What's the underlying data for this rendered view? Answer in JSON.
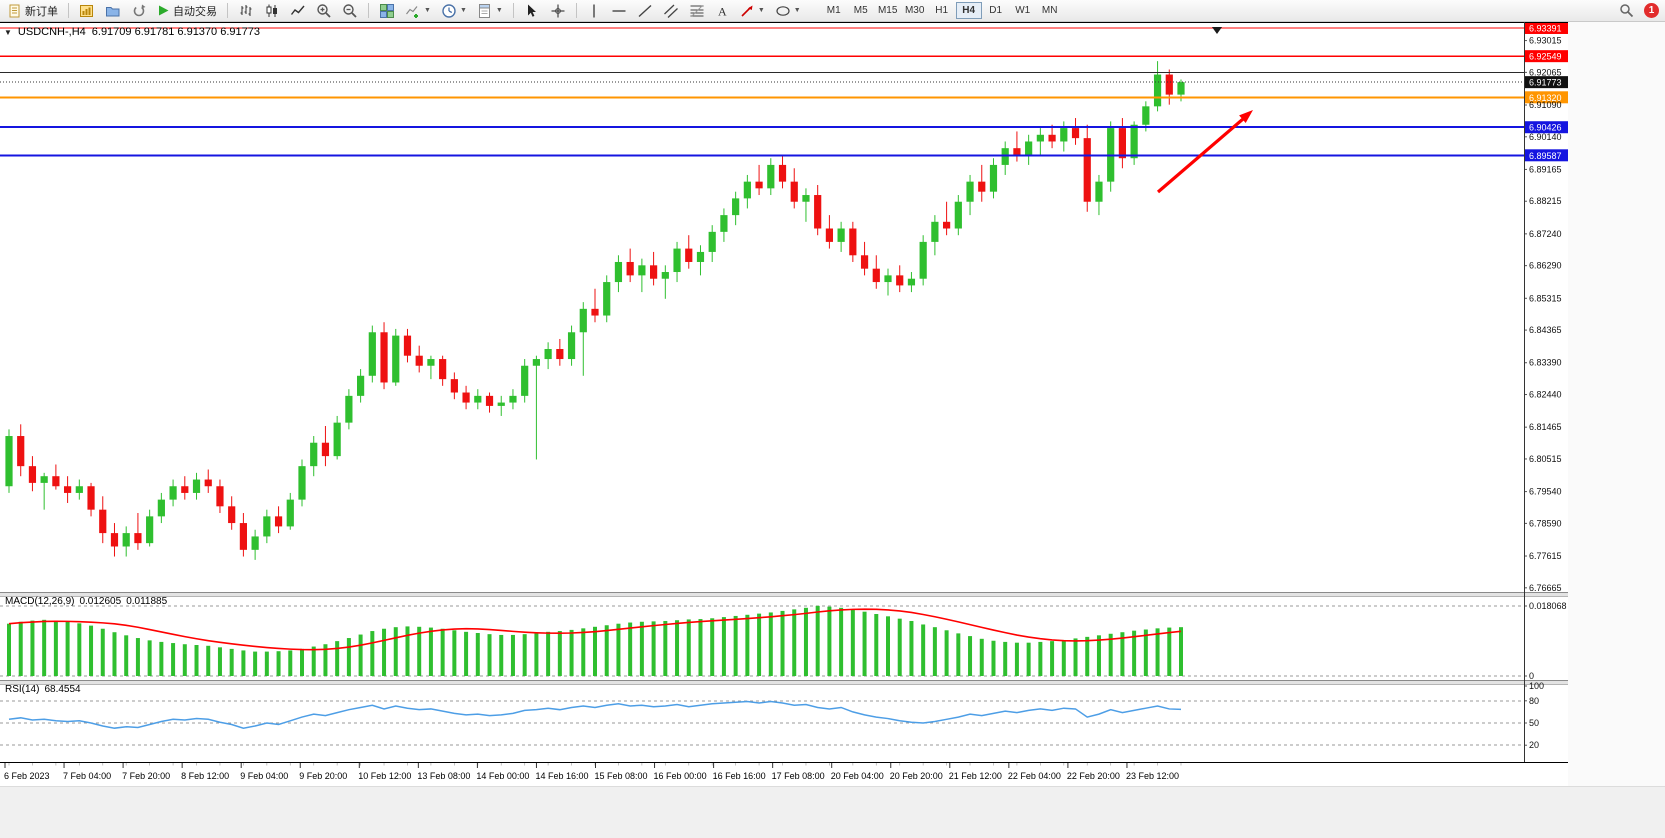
{
  "toolbar": {
    "new_order_label": "新订单",
    "autotrading_label": "自动交易",
    "timeframes": [
      "M1",
      "M5",
      "M15",
      "M30",
      "H1",
      "H4",
      "D1",
      "W1",
      "MN"
    ],
    "active_timeframe": "H4",
    "notification_count": "1"
  },
  "chart_data": [
    {
      "type": "candlestick",
      "title": "USDCNH-,H4",
      "ohlc_text": "6.91709 6.91781 6.91370 6.91773",
      "current_price": 6.91773,
      "up_color": "#2fbf2f",
      "down_color": "#ee1111",
      "y_axis_ticks": [
        6.93015,
        6.92065,
        6.9109,
        6.9014,
        6.89165,
        6.88215,
        6.8724,
        6.8629,
        6.85315,
        6.84365,
        6.8339,
        6.8244,
        6.81465,
        6.80515,
        6.7954,
        6.7859,
        6.77615,
        6.76665
      ],
      "x_axis_labels": [
        "6 Feb 2023",
        "7 Feb 04:00",
        "7 Feb 20:00",
        "8 Feb 12:00",
        "9 Feb 04:00",
        "9 Feb 20:00",
        "10 Feb 12:00",
        "13 Feb 08:00",
        "14 Feb 00:00",
        "14 Feb 16:00",
        "15 Feb 08:00",
        "16 Feb 00:00",
        "16 Feb 16:00",
        "17 Feb 08:00",
        "20 Feb 04:00",
        "20 Feb 20:00",
        "21 Feb 12:00",
        "22 Feb 04:00",
        "22 Feb 20:00",
        "23 Feb 12:00"
      ],
      "hlines": [
        {
          "price": 6.93391,
          "color": "#ff0000",
          "width": 1.4,
          "label": true
        },
        {
          "price": 6.92549,
          "color": "#ff0000",
          "width": 1.4,
          "label": true
        },
        {
          "price": 6.92065,
          "color": "#2a2a2a",
          "width": 1,
          "label": false
        },
        {
          "price": 6.9132,
          "color": "#ff9500",
          "width": 2,
          "label": true
        },
        {
          "price": 6.90426,
          "color": "#1515e0",
          "width": 2,
          "label": true
        },
        {
          "price": 6.89587,
          "color": "#1515e0",
          "width": 2,
          "label": true
        }
      ],
      "arrow": {
        "color": "#ff0000"
      },
      "candles": [
        [
          6.797,
          6.814,
          6.795,
          6.812
        ],
        [
          6.812,
          6.8155,
          6.8,
          6.803
        ],
        [
          6.803,
          6.806,
          6.7955,
          6.798
        ],
        [
          6.798,
          6.801,
          6.79,
          6.8
        ],
        [
          6.8,
          6.8035,
          6.796,
          6.797
        ],
        [
          6.797,
          6.8,
          6.792,
          6.795
        ],
        [
          6.795,
          6.799,
          6.793,
          6.797
        ],
        [
          6.797,
          6.798,
          6.788,
          6.79
        ],
        [
          6.79,
          6.794,
          6.78,
          6.783
        ],
        [
          6.783,
          6.786,
          6.776,
          6.779
        ],
        [
          6.779,
          6.785,
          6.776,
          6.783
        ],
        [
          6.783,
          6.789,
          6.778,
          6.78
        ],
        [
          6.78,
          6.79,
          6.779,
          6.788
        ],
        [
          6.788,
          6.795,
          6.786,
          6.793
        ],
        [
          6.793,
          6.799,
          6.791,
          6.797
        ],
        [
          6.797,
          6.8,
          6.793,
          6.795
        ],
        [
          6.795,
          6.801,
          6.793,
          6.799
        ],
        [
          6.799,
          6.802,
          6.795,
          6.797
        ],
        [
          6.797,
          6.799,
          6.789,
          6.791
        ],
        [
          6.791,
          6.794,
          6.784,
          6.786
        ],
        [
          6.786,
          6.789,
          6.776,
          6.778
        ],
        [
          6.778,
          6.784,
          6.775,
          6.782
        ],
        [
          6.782,
          6.79,
          6.78,
          6.788
        ],
        [
          6.788,
          6.791,
          6.783,
          6.785
        ],
        [
          6.785,
          6.795,
          6.784,
          6.793
        ],
        [
          6.793,
          6.805,
          6.791,
          6.803
        ],
        [
          6.803,
          6.812,
          6.8,
          6.81
        ],
        [
          6.81,
          6.815,
          6.803,
          6.806
        ],
        [
          6.806,
          6.818,
          6.805,
          6.816
        ],
        [
          6.816,
          6.826,
          6.814,
          6.824
        ],
        [
          6.824,
          6.832,
          6.822,
          6.83
        ],
        [
          6.83,
          6.845,
          6.828,
          6.843
        ],
        [
          6.843,
          6.846,
          6.826,
          6.828
        ],
        [
          6.828,
          6.844,
          6.827,
          6.842
        ],
        [
          6.842,
          6.844,
          6.834,
          6.836
        ],
        [
          6.836,
          6.839,
          6.831,
          6.833
        ],
        [
          6.833,
          6.836,
          6.829,
          6.835
        ],
        [
          6.835,
          6.836,
          6.827,
          6.829
        ],
        [
          6.829,
          6.831,
          6.823,
          6.825
        ],
        [
          6.825,
          6.827,
          6.82,
          6.822
        ],
        [
          6.822,
          6.826,
          6.82,
          6.824
        ],
        [
          6.824,
          6.825,
          6.819,
          6.821
        ],
        [
          6.821,
          6.824,
          6.818,
          6.822
        ],
        [
          6.822,
          6.826,
          6.82,
          6.824
        ],
        [
          6.824,
          6.835,
          6.822,
          6.833
        ],
        [
          6.833,
          6.836,
          6.805,
          6.835
        ],
        [
          6.835,
          6.84,
          6.832,
          6.838
        ],
        [
          6.838,
          6.841,
          6.833,
          6.835
        ],
        [
          6.835,
          6.845,
          6.833,
          6.843
        ],
        [
          6.843,
          6.852,
          6.83,
          6.85
        ],
        [
          6.85,
          6.856,
          6.846,
          6.848
        ],
        [
          6.848,
          6.86,
          6.846,
          6.858
        ],
        [
          6.858,
          6.866,
          6.855,
          6.864
        ],
        [
          6.864,
          6.868,
          6.858,
          6.86
        ],
        [
          6.86,
          6.865,
          6.855,
          6.863
        ],
        [
          6.863,
          6.867,
          6.857,
          6.859
        ],
        [
          6.859,
          6.863,
          6.853,
          6.861
        ],
        [
          6.861,
          6.87,
          6.858,
          6.868
        ],
        [
          6.868,
          6.872,
          6.862,
          6.864
        ],
        [
          6.864,
          6.869,
          6.86,
          6.867
        ],
        [
          6.867,
          6.875,
          6.864,
          6.873
        ],
        [
          6.873,
          6.88,
          6.87,
          6.878
        ],
        [
          6.878,
          6.885,
          6.875,
          6.883
        ],
        [
          6.883,
          6.89,
          6.88,
          6.888
        ],
        [
          6.888,
          6.893,
          6.884,
          6.886
        ],
        [
          6.886,
          6.895,
          6.884,
          6.893
        ],
        [
          6.893,
          6.896,
          6.886,
          6.888
        ],
        [
          6.888,
          6.892,
          6.88,
          6.882
        ],
        [
          6.882,
          6.886,
          6.876,
          6.884
        ],
        [
          6.884,
          6.887,
          6.872,
          6.874
        ],
        [
          6.874,
          6.878,
          6.868,
          6.87
        ],
        [
          6.87,
          6.876,
          6.867,
          6.874
        ],
        [
          6.874,
          6.876,
          6.864,
          6.866
        ],
        [
          6.866,
          6.87,
          6.86,
          6.862
        ],
        [
          6.862,
          6.866,
          6.856,
          6.858
        ],
        [
          6.858,
          6.862,
          6.854,
          6.86
        ],
        [
          6.86,
          6.863,
          6.855,
          6.857
        ],
        [
          6.857,
          6.861,
          6.855,
          6.859
        ],
        [
          6.859,
          6.872,
          6.857,
          6.87
        ],
        [
          6.87,
          6.878,
          6.866,
          6.876
        ],
        [
          6.876,
          6.882,
          6.872,
          6.874
        ],
        [
          6.874,
          6.884,
          6.872,
          6.882
        ],
        [
          6.882,
          6.89,
          6.878,
          6.888
        ],
        [
          6.888,
          6.893,
          6.882,
          6.885
        ],
        [
          6.885,
          6.895,
          6.883,
          6.893
        ],
        [
          6.893,
          6.9,
          6.89,
          6.898
        ],
        [
          6.898,
          6.903,
          6.894,
          6.896
        ],
        [
          6.896,
          6.902,
          6.893,
          6.9
        ],
        [
          6.9,
          6.904,
          6.896,
          6.902
        ],
        [
          6.902,
          6.905,
          6.898,
          6.9
        ],
        [
          6.9,
          6.906,
          6.897,
          6.904
        ],
        [
          6.904,
          6.907,
          6.899,
          6.901
        ],
        [
          6.901,
          6.905,
          6.879,
          6.882
        ],
        [
          6.882,
          6.89,
          6.878,
          6.888
        ],
        [
          6.888,
          6.906,
          6.885,
          6.904
        ],
        [
          6.904,
          6.907,
          6.892,
          6.895
        ],
        [
          6.895,
          6.906,
          6.893,
          6.905
        ],
        [
          6.905,
          6.912,
          6.903,
          6.9105
        ],
        [
          6.9105,
          6.924,
          6.909,
          6.92
        ],
        [
          6.92,
          6.9215,
          6.911,
          6.914
        ],
        [
          6.914,
          6.9185,
          6.912,
          6.91773
        ]
      ]
    },
    {
      "type": "bar",
      "name": "MACD",
      "label": "MACD(12,26,9)",
      "main_value": "0.012605",
      "signal_value": "0.011885",
      "axis_max": 0.018068,
      "bar_color": "#2fbf2f",
      "signal_color": "#ff0000",
      "histogram": [
        0.0135,
        0.014,
        0.0143,
        0.0145,
        0.0143,
        0.014,
        0.0136,
        0.013,
        0.0122,
        0.0113,
        0.0105,
        0.0098,
        0.0092,
        0.0088,
        0.0085,
        0.0082,
        0.008,
        0.0078,
        0.0074,
        0.007,
        0.0066,
        0.0063,
        0.0063,
        0.0064,
        0.0066,
        0.007,
        0.0076,
        0.0082,
        0.009,
        0.0098,
        0.0107,
        0.0116,
        0.0122,
        0.0126,
        0.0128,
        0.0127,
        0.0125,
        0.0122,
        0.0118,
        0.0114,
        0.0111,
        0.0108,
        0.0106,
        0.0106,
        0.0108,
        0.0111,
        0.0114,
        0.0116,
        0.0119,
        0.0123,
        0.0127,
        0.0131,
        0.0135,
        0.0138,
        0.014,
        0.0141,
        0.0142,
        0.0144,
        0.0146,
        0.0147,
        0.0149,
        0.0152,
        0.0155,
        0.0158,
        0.0161,
        0.0164,
        0.0168,
        0.0172,
        0.0176,
        0.0181,
        0.0179,
        0.0176,
        0.0171,
        0.0166,
        0.016,
        0.0154,
        0.0148,
        0.0142,
        0.0133,
        0.0126,
        0.0118,
        0.011,
        0.0103,
        0.0096,
        0.0091,
        0.0088,
        0.0086,
        0.0086,
        0.0088,
        0.009,
        0.0093,
        0.0097,
        0.0101,
        0.0105,
        0.0109,
        0.0113,
        0.0117,
        0.012,
        0.0123,
        0.0125,
        0.012605
      ]
    },
    {
      "type": "line",
      "name": "RSI",
      "label": "RSI(14)",
      "value_display": "68.4554",
      "line_color": "#4d9ee6",
      "levels": [
        80,
        50,
        20
      ],
      "axis_ticks": [
        100,
        80,
        50,
        20
      ],
      "values": [
        55,
        57,
        54,
        55,
        53,
        52,
        53,
        50,
        46,
        43,
        45,
        44,
        48,
        52,
        55,
        54,
        56,
        55,
        51,
        48,
        43,
        46,
        50,
        48,
        53,
        58,
        62,
        60,
        64,
        68,
        71,
        74,
        69,
        73,
        70,
        68,
        69,
        66,
        63,
        61,
        62,
        60,
        61,
        63,
        67,
        68,
        70,
        68,
        71,
        73,
        71,
        74,
        76,
        73,
        74,
        72,
        73,
        75,
        72,
        74,
        76,
        77,
        78,
        79,
        77,
        79,
        77,
        74,
        75,
        71,
        69,
        71,
        65,
        61,
        58,
        56,
        53,
        51,
        50,
        52,
        55,
        58,
        62,
        60,
        63,
        66,
        64,
        67,
        69,
        67,
        70,
        69,
        58,
        62,
        68,
        64,
        67,
        70,
        73,
        69,
        68.4554
      ]
    }
  ]
}
